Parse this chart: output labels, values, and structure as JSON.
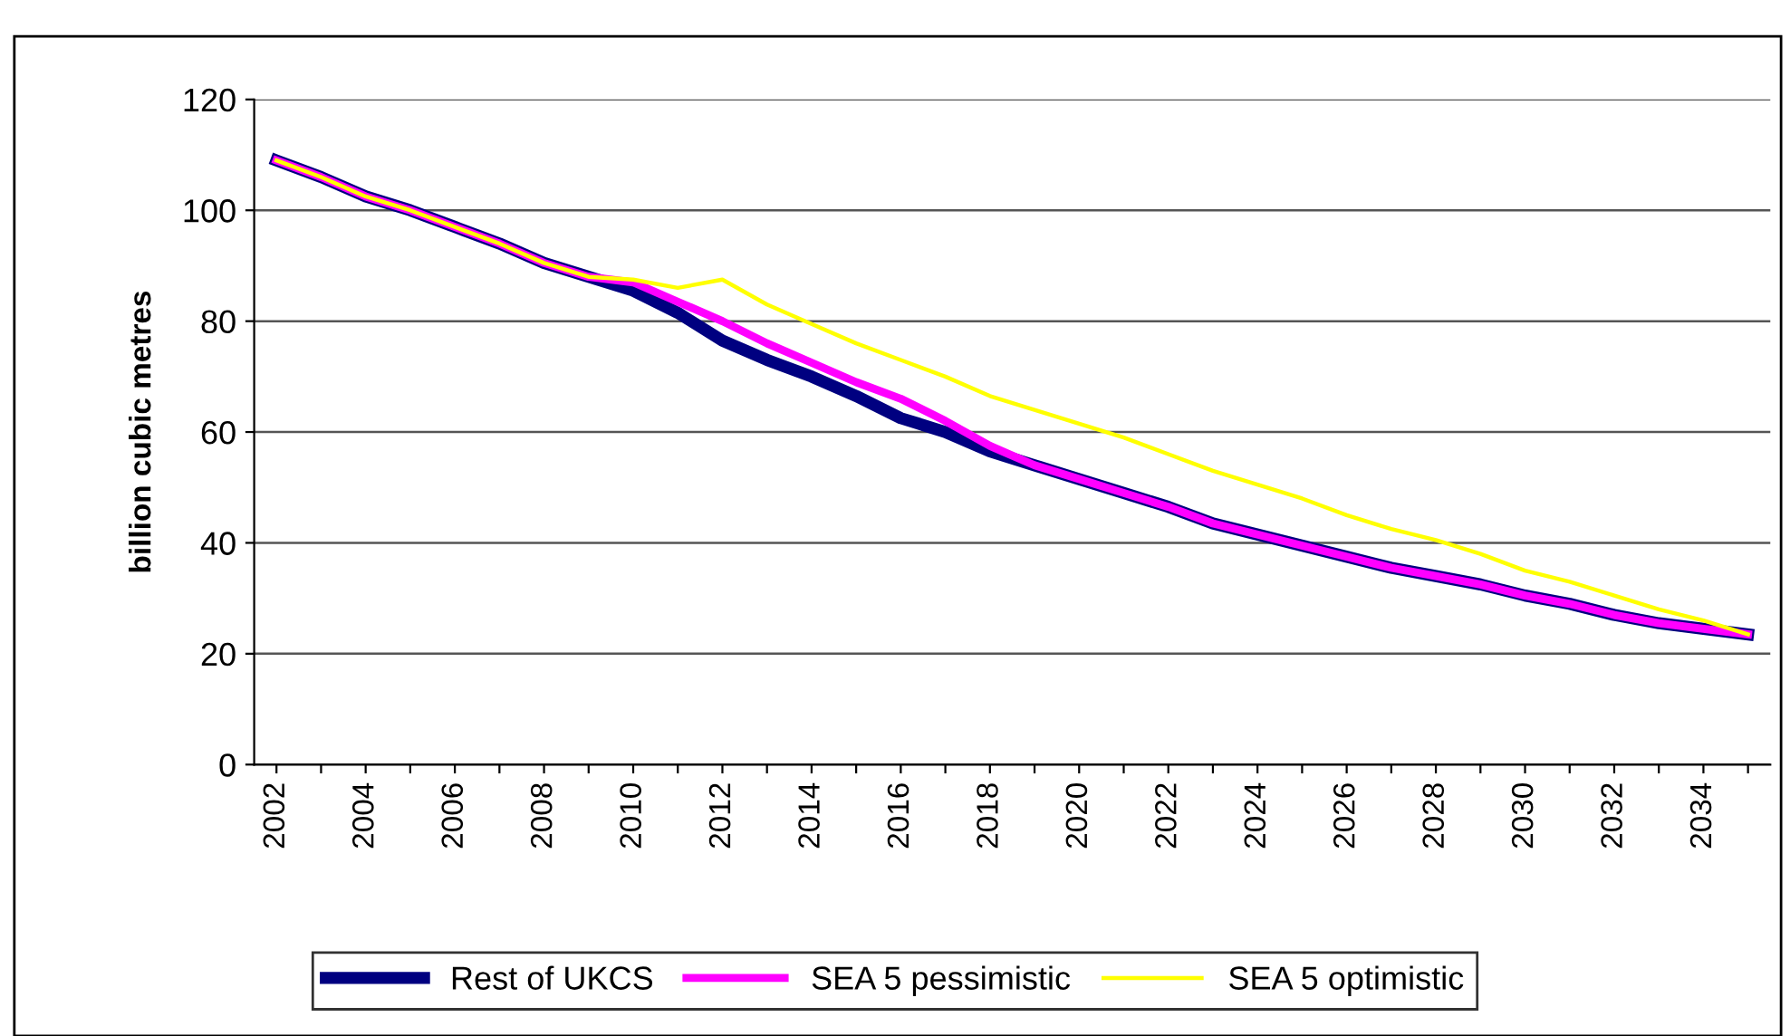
{
  "chart_data": {
    "type": "line",
    "ylabel": "billion cubic metres",
    "categories": [
      "2002",
      null,
      "2004",
      null,
      "2006",
      null,
      "2008",
      null,
      "2010",
      null,
      "2012",
      null,
      "2014",
      null,
      "2016",
      null,
      "2018",
      null,
      "2020",
      null,
      "2022",
      null,
      "2024",
      null,
      "2026",
      null,
      "2028",
      null,
      "2030",
      null,
      "2032",
      null,
      "2034",
      null
    ],
    "series": [
      {
        "name": "Rest of UKCS",
        "color": "#000080",
        "values": [
          109,
          106,
          102.5,
          100,
          97,
          94,
          90.5,
          88,
          85.5,
          81.5,
          76.5,
          73,
          70,
          66.5,
          62.5,
          60,
          56.5,
          54,
          51.5,
          49,
          46.5,
          43.5,
          41.5,
          39.5,
          37.5,
          35.5,
          34,
          32.5,
          30.5,
          29,
          27,
          25.5,
          24.5,
          23.5
        ]
      },
      {
        "name": "SEA 5 pessimistic",
        "color": "#ff00ff",
        "values": [
          109,
          106,
          102.5,
          100,
          97,
          94,
          90.5,
          88,
          87,
          83.5,
          80,
          76,
          72.5,
          69,
          66,
          62,
          57.5,
          54,
          51.5,
          49,
          46.5,
          43.5,
          41.5,
          39.5,
          37.5,
          35.5,
          34,
          32.5,
          30.5,
          29,
          27,
          25.5,
          24.5,
          23.5
        ]
      },
      {
        "name": "SEA 5 optimistic",
        "color": "#ffff00",
        "values": [
          109,
          106,
          102.5,
          100,
          97,
          94,
          90.5,
          88,
          87.5,
          86,
          87.5,
          83,
          79.5,
          76,
          73,
          70,
          66.5,
          64,
          61.5,
          59,
          56,
          53,
          50.5,
          48,
          45,
          42.5,
          40.5,
          38,
          35,
          33,
          30.5,
          28,
          26,
          23.5
        ]
      }
    ],
    "ylim": [
      0,
      120
    ],
    "yticks": [
      0,
      20,
      40,
      60,
      80,
      100,
      120
    ],
    "grid": "y",
    "legend": "bottom",
    "marker": "none",
    "line_style": "solid"
  }
}
